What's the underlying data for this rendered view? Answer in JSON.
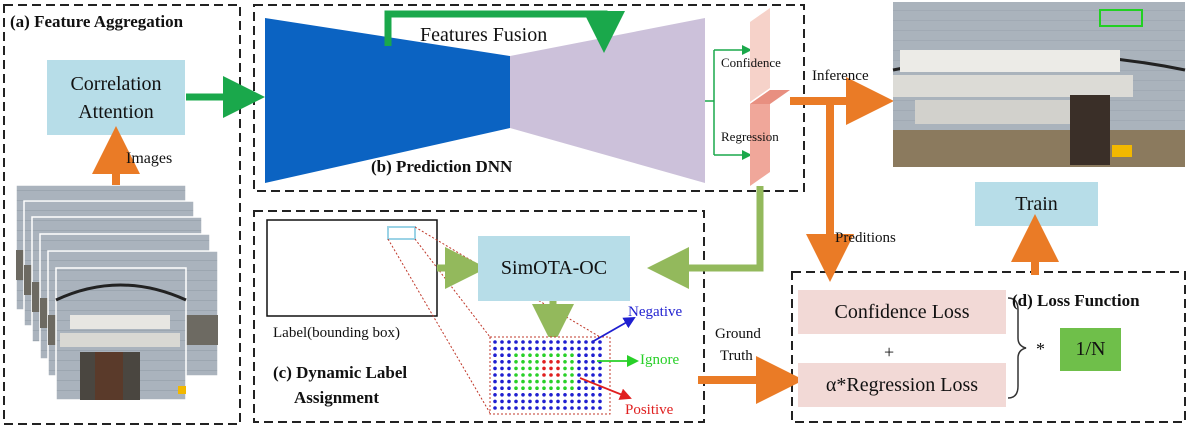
{
  "panels": {
    "a_title": "(a) Feature Aggregation",
    "b_title": "(b) Prediction DNN",
    "c_title_line1": "(c) Dynamic Label",
    "c_title_line2": "Assignment",
    "d_title": "(d) Loss Function"
  },
  "blocks": {
    "correlation_line1": "Correlation",
    "correlation_line2": "Attention",
    "simota": "SimOTA-OC",
    "train": "Train",
    "confidence_loss": "Confidence Loss",
    "plus": "+",
    "regression_loss": "α*Regression Loss",
    "multiply": "*",
    "normalizer": "1/N"
  },
  "labels": {
    "images": "Images",
    "features_fusion": "Features Fusion",
    "confidence": "Confidence",
    "regression": "Regression",
    "inference": "Inference",
    "preditions": "Preditions",
    "label_bbox": "Label(bounding box)",
    "negative": "Negative",
    "ignore": "Ignore",
    "positive": "Positive",
    "ground_line1": "Ground",
    "ground_line2": "Truth"
  },
  "colors": {
    "light_blue_block": "#b7dde8",
    "dnn_encoder": "#0b63c2",
    "dnn_decoder": "#ccc1da",
    "green_arrow": "#1aa84b",
    "olive_arrow": "#93b95c",
    "orange_arrow": "#ea7b26",
    "loss_block": "#f2d9d6",
    "norm_block": "#6fbf4a",
    "head_block": "#f4c1b5",
    "negative": "#1f1fd0",
    "ignore": "#28d028",
    "positive": "#e01f1f"
  }
}
